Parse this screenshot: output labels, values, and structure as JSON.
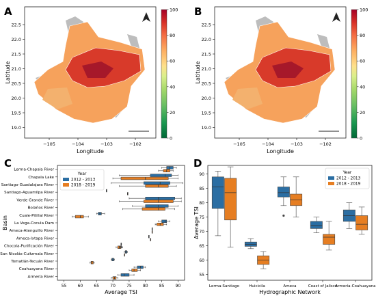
{
  "panels": {
    "A": {
      "letter": "A"
    },
    "B": {
      "letter": "B"
    },
    "C": {
      "letter": "C"
    },
    "D": {
      "letter": "D"
    }
  },
  "maps": {
    "xlabel": "Longitude",
    "ylabel": "Latitude",
    "xticks": [
      "−105",
      "−104",
      "−103",
      "−102"
    ],
    "yticks": [
      "22.5",
      "22.0",
      "21.5",
      "21.0",
      "20.5",
      "20.0",
      "19.5",
      "19.0"
    ],
    "colorbar_ticks": [
      "100",
      "80",
      "60",
      "40",
      "20",
      "0"
    ],
    "colorbar_colors": [
      "#a50026",
      "#d73027",
      "#f46d43",
      "#fdae61",
      "#fee08b",
      "#d9ef8b",
      "#a6d96a",
      "#66bd63",
      "#1a9850",
      "#006837"
    ]
  },
  "colors": {
    "series_2012": "#2b6ea3",
    "series_2018": "#e67e22"
  },
  "chart_data": [
    {
      "type": "box",
      "orientation": "horizontal",
      "xlabel": "Average TSI",
      "ylabel": "Basin",
      "xlim": [
        53,
        92
      ],
      "xticks": [
        55,
        60,
        65,
        70,
        75,
        80,
        85,
        90
      ],
      "legend": {
        "title": "Year",
        "placement": "top-left"
      },
      "series_names": [
        "2012 - 2013",
        "2018 - 2019"
      ],
      "categories": [
        "Lerma-Chapala River",
        "Chapala Lake",
        "Santiago-Guadalajara River",
        "Santiago-Aguamilpa River",
        "Verde Grande River",
        "Bolaños River",
        "Cuale-Pitillal River",
        "La Vega-Cocula Dam",
        "Ameca-Atenguillo River",
        "Ameca-Ixtapa River",
        "Chocola-Purificación River",
        "San Nicolás-Cuitzmala River",
        "Tomatlán-Tecuán River",
        "Coahuayana River",
        "Armería River"
      ],
      "boxes": [
        {
          "category": "Lerma-Chapala River",
          "series": 0,
          "whislo": 85,
          "q1": 86.5,
          "med": 87.5,
          "q3": 88.5,
          "whishi": 89.5
        },
        {
          "category": "Lerma-Chapala River",
          "series": 1,
          "whislo": 84,
          "q1": 85.5,
          "med": 86.5,
          "q3": 87.5,
          "whishi": 88.5
        },
        {
          "category": "Chapala Lake",
          "series": 0,
          "whislo": 72,
          "q1": 81.5,
          "med": 86,
          "q3": 88,
          "whishi": 90
        },
        {
          "category": "Chapala Lake",
          "series": 1,
          "whislo": 70,
          "q1": 72.5,
          "med": 80,
          "q3": 87,
          "whishi": 90
        },
        {
          "category": "Santiago-Guadalajara River",
          "series": 0,
          "whislo": 69.5,
          "q1": 79.5,
          "med": 84.5,
          "q3": 87.5,
          "whishi": 91.5
        },
        {
          "category": "Santiago-Guadalajara River",
          "series": 1,
          "whislo": 72,
          "q1": 80,
          "med": 84,
          "q3": 87,
          "whishi": 89.5
        },
        {
          "category": "Santiago-Aguamilpa River",
          "series": 0,
          "whislo": 68,
          "q1": 68,
          "med": 68,
          "q3": 68,
          "whishi": 68
        },
        {
          "category": "Santiago-Aguamilpa River",
          "series": 1,
          "whislo": 74.5,
          "q1": 74.5,
          "med": 74.5,
          "q3": 74.5,
          "whishi": 74.5
        },
        {
          "category": "Verde Grande River",
          "series": 0,
          "whislo": 75,
          "q1": 80,
          "med": 84,
          "q3": 89,
          "whishi": 91
        },
        {
          "category": "Verde Grande River",
          "series": 1,
          "whislo": 72,
          "q1": 79.5,
          "med": 84,
          "q3": 88.5,
          "whishi": 91
        },
        {
          "category": "Bolaños River",
          "series": 0,
          "whislo": 76,
          "q1": 80,
          "med": 84,
          "q3": 87,
          "whishi": 90
        },
        {
          "category": "Bolaños River",
          "series": 1,
          "whislo": 73,
          "q1": 79,
          "med": 84,
          "q3": 86,
          "whishi": 89
        },
        {
          "category": "Cuale-Pitillal River",
          "series": 0,
          "whislo": 65,
          "q1": 65.5,
          "med": 66,
          "q3": 66.5,
          "whishi": 67.5
        },
        {
          "category": "Cuale-Pitillal River",
          "series": 1,
          "whislo": 57.5,
          "q1": 58.5,
          "med": 60,
          "q3": 61,
          "whishi": 62.5
        },
        {
          "category": "La Vega-Cocula Dam",
          "series": 0,
          "whislo": 84,
          "q1": 85,
          "med": 86,
          "q3": 86.5,
          "whishi": 87.5
        },
        {
          "category": "La Vega-Cocula Dam",
          "series": 1,
          "whislo": 83,
          "q1": 83.5,
          "med": 84.5,
          "q3": 85.5,
          "whishi": 86.5
        },
        {
          "category": "Ameca-Atenguillo River",
          "series": 0,
          "whislo": 82,
          "q1": 82,
          "med": 82,
          "q3": 82,
          "whishi": 82
        },
        {
          "category": "Ameca-Atenguillo River",
          "series": 1,
          "whislo": 82,
          "q1": 82,
          "med": 82,
          "q3": 82,
          "whishi": 82
        },
        {
          "category": "Ameca-Ixtapa River",
          "series": 0,
          "whislo": 81,
          "q1": 81,
          "med": 81,
          "q3": 81,
          "whishi": 81
        },
        {
          "category": "Ameca-Ixtapa River",
          "series": 1,
          "whislo": 81.5,
          "q1": 81.5,
          "med": 81.5,
          "q3": 81.5,
          "whishi": 81.5
        },
        {
          "category": "Chocola-Purificación River",
          "series": 0,
          "whislo": 72.5,
          "q1": 72.5,
          "med": 72.5,
          "q3": 72.5,
          "whishi": 72.5
        },
        {
          "category": "Chocola-Purificación River",
          "series": 1,
          "whislo": 71,
          "q1": 71.5,
          "med": 72,
          "q3": 72.5,
          "whishi": 73
        },
        {
          "category": "San Nicolás-Cuitzmala River",
          "series": 0,
          "whislo": 73.5,
          "q1": 73.8,
          "med": 74,
          "q3": 74.3,
          "whishi": 74.5
        },
        {
          "category": "San Nicolás-Cuitzmala River",
          "series": 1,
          "whislo": 73.5,
          "q1": 73.5,
          "med": 73.5,
          "q3": 73.5,
          "whishi": 73.5
        },
        {
          "category": "Tomatlán-Tecuán River",
          "series": 0,
          "whislo": 69.5,
          "q1": 69.7,
          "med": 70,
          "q3": 70.3,
          "whishi": 70.5
        },
        {
          "category": "Tomatlán-Tecuán River",
          "series": 1,
          "whislo": 63,
          "q1": 63.3,
          "med": 63.6,
          "q3": 64,
          "whishi": 64.3
        },
        {
          "category": "Coahuayana River",
          "series": 0,
          "whislo": 76.5,
          "q1": 77.5,
          "med": 78.5,
          "q3": 79.3,
          "whishi": 80
        },
        {
          "category": "Coahuayana River",
          "series": 1,
          "whislo": 75,
          "q1": 75.8,
          "med": 76.5,
          "q3": 77.5,
          "whishi": 78.5
        },
        {
          "category": "Armería River",
          "series": 0,
          "whislo": 71.5,
          "q1": 72.5,
          "med": 73.5,
          "q3": 75,
          "whishi": 76.5
        },
        {
          "category": "Armería River",
          "series": 1,
          "whislo": 69.5,
          "q1": 70,
          "med": 70.5,
          "q3": 71,
          "whishi": 71.5
        }
      ],
      "outliers": [
        {
          "category": "Santiago-Guadalajara River",
          "series": 0,
          "value": 64.5
        },
        {
          "category": "Chocola-Purificación River",
          "series": 1,
          "value": 72.5
        }
      ]
    },
    {
      "type": "box",
      "orientation": "vertical",
      "xlabel": "Hydrographic Network",
      "ylabel": "Average TSI",
      "ylim": [
        53,
        93
      ],
      "yticks": [
        55,
        60,
        65,
        70,
        75,
        80,
        85,
        90
      ],
      "legend": {
        "title": "Year",
        "placement": "top-right"
      },
      "series_names": [
        "2012 - 2013",
        "2018 - 2019"
      ],
      "categories": [
        "Lerma-Santiago",
        "Huicicila",
        "Ameca",
        "Coast of Jalisco",
        "Armería-Coahuayana"
      ],
      "boxes": [
        {
          "category": "Lerma-Santiago",
          "series": 0,
          "whislo": 68.5,
          "q1": 78,
          "med": 85.5,
          "q3": 89,
          "whishi": 91
        },
        {
          "category": "Lerma-Santiago",
          "series": 1,
          "whislo": 64.5,
          "q1": 74,
          "med": 83.5,
          "q3": 88.5,
          "whishi": 92.5
        },
        {
          "category": "Huicicila",
          "series": 0,
          "whislo": 64,
          "q1": 64.8,
          "med": 65.5,
          "q3": 66.3,
          "whishi": 67.5
        },
        {
          "category": "Huicicila",
          "series": 1,
          "whislo": 57,
          "q1": 58.5,
          "med": 60,
          "q3": 61.5,
          "whishi": 63
        },
        {
          "category": "Ameca",
          "series": 0,
          "whislo": 79,
          "q1": 82,
          "med": 83.5,
          "q3": 85.5,
          "whishi": 89
        },
        {
          "category": "Ameca",
          "series": 1,
          "whislo": 75,
          "q1": 79,
          "med": 81,
          "q3": 83,
          "whishi": 89
        },
        {
          "category": "Coast of Jalisco",
          "series": 0,
          "whislo": 69.5,
          "q1": 71,
          "med": 72,
          "q3": 73.5,
          "whishi": 75
        },
        {
          "category": "Coast of Jalisco",
          "series": 1,
          "whislo": 63.5,
          "q1": 65.5,
          "med": 68,
          "q3": 69,
          "whishi": 73.5
        },
        {
          "category": "Armería-Coahuayana",
          "series": 0,
          "whislo": 71,
          "q1": 73.5,
          "med": 75.5,
          "q3": 77.5,
          "whishi": 80
        },
        {
          "category": "Armería-Coahuayana",
          "series": 1,
          "whislo": 69,
          "q1": 70.5,
          "med": 72.5,
          "q3": 75.5,
          "whishi": 78.5
        }
      ],
      "outliers": [
        {
          "category": "Ameca",
          "series": 0,
          "value": 75.5
        }
      ]
    }
  ]
}
